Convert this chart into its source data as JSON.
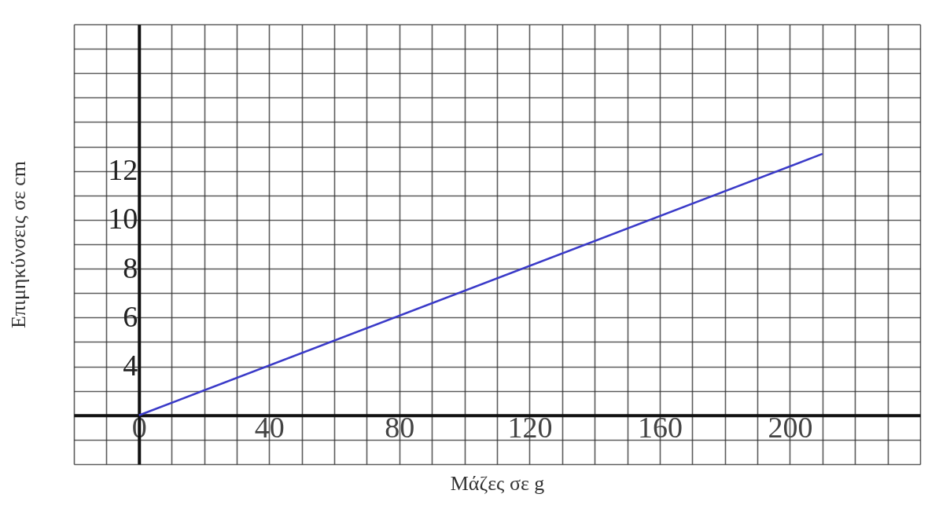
{
  "chart_data": {
    "type": "line",
    "xlabel": "Μάζες σε g",
    "ylabel": "Επιμηκύνσεις σε cm",
    "x": [
      0,
      210
    ],
    "series": [
      {
        "color": "#3a3ac8",
        "values": [
          2,
          12.7
        ]
      }
    ],
    "xlim": [
      -20,
      240
    ],
    "ylim": [
      0,
      18
    ],
    "xticks": [
      {
        "value": -20,
        "label": null
      },
      {
        "value": -10,
        "label": null
      },
      0,
      {
        "value": 10,
        "label": null
      },
      {
        "value": 20,
        "label": null
      },
      {
        "value": 30,
        "label": null
      },
      40,
      {
        "value": 50,
        "label": null
      },
      {
        "value": 60,
        "label": null
      },
      {
        "value": 70,
        "label": null
      },
      80,
      {
        "value": 90,
        "label": null
      },
      {
        "value": 100,
        "label": null
      },
      {
        "value": 110,
        "label": null
      },
      120,
      {
        "value": 130,
        "label": null
      },
      {
        "value": 140,
        "label": null
      },
      {
        "value": 150,
        "label": null
      },
      160,
      {
        "value": 170,
        "label": null
      },
      {
        "value": 180,
        "label": null
      },
      {
        "value": 190,
        "label": null
      },
      200,
      {
        "value": 210,
        "label": null
      },
      {
        "value": 220,
        "label": null
      },
      {
        "value": 230,
        "label": null
      },
      {
        "value": 240,
        "label": null
      }
    ],
    "yticks": [
      {
        "value": 0,
        "label": null
      },
      {
        "value": 1,
        "label": null
      },
      {
        "value": 2,
        "label": null
      },
      {
        "value": 3,
        "label": null
      },
      4,
      {
        "value": 5,
        "label": null
      },
      6,
      {
        "value": 7,
        "label": null
      },
      8,
      {
        "value": 9,
        "label": null
      },
      10,
      {
        "value": 11,
        "label": null
      },
      12,
      {
        "value": 13,
        "label": null
      },
      {
        "value": 14,
        "label": null
      },
      {
        "value": 15,
        "label": null
      },
      {
        "value": 16,
        "label": null
      },
      {
        "value": 17,
        "label": null
      },
      {
        "value": 18,
        "label": null
      }
    ],
    "grid": true,
    "marker": "none",
    "line_style": "solid"
  }
}
